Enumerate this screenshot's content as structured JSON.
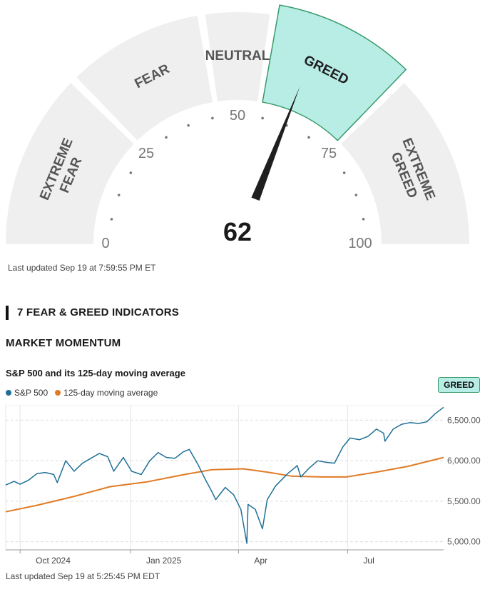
{
  "gauge": {
    "value": 62,
    "segments": [
      {
        "label": "EXTREME FEAR",
        "lines": [
          "EXTREME",
          "FEAR"
        ],
        "range": [
          0,
          25
        ]
      },
      {
        "label": "FEAR",
        "lines": [
          "FEAR"
        ],
        "range": [
          25,
          45
        ]
      },
      {
        "label": "NEUTRAL",
        "lines": [
          "NEUTRAL"
        ],
        "range": [
          45,
          55
        ]
      },
      {
        "label": "GREED",
        "lines": [
          "GREED"
        ],
        "range": [
          55,
          75
        ],
        "active": true
      },
      {
        "label": "EXTREME GREED",
        "lines": [
          "EXTREME",
          "GREED"
        ],
        "range": [
          75,
          100
        ]
      }
    ],
    "ticks": [
      "0",
      "25",
      "50",
      "75",
      "100"
    ],
    "colors": {
      "segment": "#efefef",
      "active_fill": "#b8ede6",
      "active_stroke": "#3a9a6c",
      "needle": "#1f1f1f"
    },
    "updated": "Last updated Sep 19 at 7:59:55 PM ET"
  },
  "indicators_heading": "7 FEAR & GREED INDICATORS",
  "momentum": {
    "heading": "MARKET MOMENTUM",
    "chart_title": "S&P 500 and its 125-day moving average",
    "badge": "GREED",
    "updated": "Last updated Sep 19 at 5:25:45 PM EDT"
  },
  "chart_data": {
    "type": "line",
    "title": "S&P 500 and its 125-day moving average",
    "x_ticks": [
      "Oct 2024",
      "Jan 2025",
      "Apr",
      "Jul"
    ],
    "x_range": [
      "2024-09-19",
      "2025-09-19"
    ],
    "y_ticks": [
      "6,500.00",
      "6,000.00",
      "5,500.00",
      "5,000.00"
    ],
    "ylim": [
      4900,
      6680
    ],
    "grid": true,
    "legend_position": "top-left",
    "series": [
      {
        "name": "S&P 500",
        "color": "#1f6f96",
        "points": [
          [
            "2024-09-19",
            5700
          ],
          [
            "2024-09-26",
            5745
          ],
          [
            "2024-10-01",
            5710
          ],
          [
            "2024-10-08",
            5760
          ],
          [
            "2024-10-15",
            5840
          ],
          [
            "2024-10-22",
            5855
          ],
          [
            "2024-10-29",
            5830
          ],
          [
            "2024-11-01",
            5730
          ],
          [
            "2024-11-08",
            6000
          ],
          [
            "2024-11-15",
            5870
          ],
          [
            "2024-11-22",
            5970
          ],
          [
            "2024-11-29",
            6030
          ],
          [
            "2024-12-06",
            6090
          ],
          [
            "2024-12-13",
            6050
          ],
          [
            "2024-12-18",
            5870
          ],
          [
            "2024-12-26",
            6040
          ],
          [
            "2025-01-02",
            5870
          ],
          [
            "2025-01-10",
            5830
          ],
          [
            "2025-01-17",
            6000
          ],
          [
            "2025-01-24",
            6100
          ],
          [
            "2025-01-31",
            6040
          ],
          [
            "2025-02-07",
            6030
          ],
          [
            "2025-02-14",
            6110
          ],
          [
            "2025-02-19",
            6140
          ],
          [
            "2025-02-26",
            5960
          ],
          [
            "2025-03-04",
            5780
          ],
          [
            "2025-03-10",
            5615
          ],
          [
            "2025-03-13",
            5520
          ],
          [
            "2025-03-21",
            5670
          ],
          [
            "2025-03-28",
            5580
          ],
          [
            "2025-04-03",
            5400
          ],
          [
            "2025-04-08",
            4980
          ],
          [
            "2025-04-09",
            5460
          ],
          [
            "2025-04-15",
            5400
          ],
          [
            "2025-04-21",
            5160
          ],
          [
            "2025-04-25",
            5520
          ],
          [
            "2025-05-02",
            5690
          ],
          [
            "2025-05-12",
            5840
          ],
          [
            "2025-05-20",
            5940
          ],
          [
            "2025-05-23",
            5800
          ],
          [
            "2025-05-30",
            5910
          ],
          [
            "2025-06-06",
            6000
          ],
          [
            "2025-06-13",
            5980
          ],
          [
            "2025-06-20",
            5970
          ],
          [
            "2025-06-27",
            6170
          ],
          [
            "2025-07-03",
            6280
          ],
          [
            "2025-07-11",
            6260
          ],
          [
            "2025-07-18",
            6300
          ],
          [
            "2025-07-25",
            6390
          ],
          [
            "2025-07-31",
            6340
          ],
          [
            "2025-08-01",
            6240
          ],
          [
            "2025-08-08",
            6390
          ],
          [
            "2025-08-15",
            6450
          ],
          [
            "2025-08-22",
            6470
          ],
          [
            "2025-08-29",
            6460
          ],
          [
            "2025-09-05",
            6480
          ],
          [
            "2025-09-12",
            6580
          ],
          [
            "2025-09-19",
            6660
          ]
        ]
      },
      {
        "name": "125-day moving average",
        "color": "#e07b25",
        "points": [
          [
            "2024-09-19",
            5370
          ],
          [
            "2024-10-15",
            5450
          ],
          [
            "2024-11-15",
            5560
          ],
          [
            "2024-12-15",
            5680
          ],
          [
            "2025-01-15",
            5740
          ],
          [
            "2025-02-15",
            5830
          ],
          [
            "2025-03-10",
            5890
          ],
          [
            "2025-04-05",
            5900
          ],
          [
            "2025-04-25",
            5860
          ],
          [
            "2025-05-15",
            5810
          ],
          [
            "2025-06-10",
            5800
          ],
          [
            "2025-06-30",
            5800
          ],
          [
            "2025-07-25",
            5860
          ],
          [
            "2025-08-20",
            5930
          ],
          [
            "2025-09-19",
            6040
          ]
        ]
      }
    ]
  }
}
